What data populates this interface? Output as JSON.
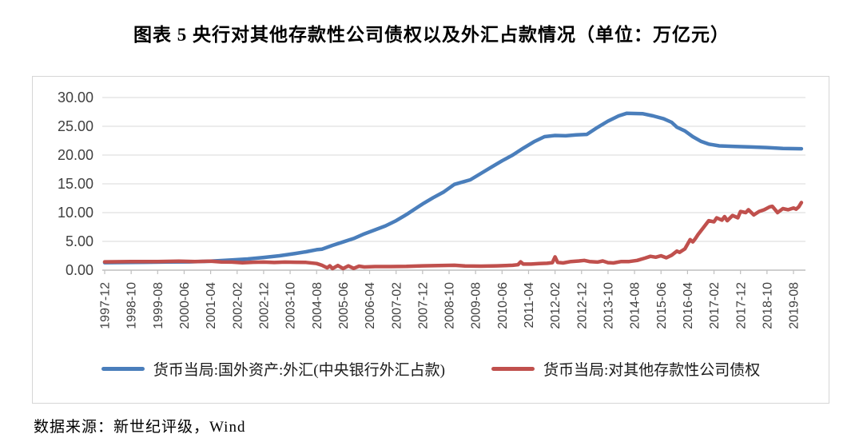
{
  "title": "图表 5  央行对其他存款性公司债权以及外汇占款情况（单位：万亿元）",
  "source_note": "数据来源：新世纪评级，Wind",
  "colors": {
    "series_blue": "#4A7EBB",
    "series_red": "#C0504D",
    "gridline": "#D9D9D9",
    "axis": "#BFBFBF",
    "tick_text": "#404040",
    "box_border": "#D6D6D6"
  },
  "chart_data": {
    "type": "line",
    "title": "央行对其他存款性公司债权以及外汇占款情况",
    "unit": "万亿元",
    "grid": "horizontal",
    "legend_position": "bottom",
    "ylim": [
      0,
      30
    ],
    "y_tick_step": 5,
    "y_tick_labels": [
      "0.00",
      "5.00",
      "10.00",
      "15.00",
      "20.00",
      "25.00",
      "30.00"
    ],
    "x_tick_labels": [
      "1997-12",
      "1998-10",
      "1999-08",
      "2000-06",
      "2001-04",
      "2002-02",
      "2002-12",
      "2003-10",
      "2004-08",
      "2005-06",
      "2006-04",
      "2007-02",
      "2007-12",
      "2008-10",
      "2009-08",
      "2010-06",
      "2011-04",
      "2012-02",
      "2012-12",
      "2013-10",
      "2014-08",
      "2015-06",
      "2016-04",
      "2017-02",
      "2017-12",
      "2018-10",
      "2019-08"
    ],
    "months_per_tick": 10,
    "total_months": 263,
    "series": [
      {
        "name": "货币当局:国外资产:外汇(中央银行外汇占款)",
        "color": "#4A7EBB",
        "points": [
          [
            0,
            1.3
          ],
          [
            8,
            1.33
          ],
          [
            16,
            1.37
          ],
          [
            24,
            1.41
          ],
          [
            32,
            1.45
          ],
          [
            40,
            1.55
          ],
          [
            48,
            1.77
          ],
          [
            54,
            1.95
          ],
          [
            60,
            2.21
          ],
          [
            66,
            2.5
          ],
          [
            72,
            2.9
          ],
          [
            76,
            3.2
          ],
          [
            80,
            3.55
          ],
          [
            82,
            3.65
          ],
          [
            86,
            4.3
          ],
          [
            90,
            4.9
          ],
          [
            94,
            5.5
          ],
          [
            98,
            6.3
          ],
          [
            102,
            7.0
          ],
          [
            106,
            7.7
          ],
          [
            110,
            8.6
          ],
          [
            114,
            9.7
          ],
          [
            118,
            10.9
          ],
          [
            120,
            11.5
          ],
          [
            124,
            12.6
          ],
          [
            128,
            13.6
          ],
          [
            132,
            14.9
          ],
          [
            135,
            15.3
          ],
          [
            138,
            15.7
          ],
          [
            142,
            16.8
          ],
          [
            146,
            17.9
          ],
          [
            150,
            19.0
          ],
          [
            154,
            20.0
          ],
          [
            158,
            21.2
          ],
          [
            162,
            22.3
          ],
          [
            166,
            23.2
          ],
          [
            170,
            23.4
          ],
          [
            174,
            23.35
          ],
          [
            178,
            23.5
          ],
          [
            182,
            23.6
          ],
          [
            186,
            24.8
          ],
          [
            190,
            25.9
          ],
          [
            194,
            26.8
          ],
          [
            197,
            27.25
          ],
          [
            203,
            27.2
          ],
          [
            207,
            26.8
          ],
          [
            211,
            26.3
          ],
          [
            214,
            25.7
          ],
          [
            216,
            24.85
          ],
          [
            219,
            24.2
          ],
          [
            222,
            23.2
          ],
          [
            225,
            22.4
          ],
          [
            228,
            21.9
          ],
          [
            232,
            21.6
          ],
          [
            238,
            21.5
          ],
          [
            244,
            21.4
          ],
          [
            250,
            21.3
          ],
          [
            256,
            21.15
          ],
          [
            263,
            21.1
          ]
        ]
      },
      {
        "name": "货币当局:对其他存款性公司债权",
        "color": "#C0504D",
        "points": [
          [
            0,
            1.44
          ],
          [
            10,
            1.48
          ],
          [
            20,
            1.5
          ],
          [
            28,
            1.55
          ],
          [
            34,
            1.48
          ],
          [
            40,
            1.55
          ],
          [
            44,
            1.42
          ],
          [
            48,
            1.4
          ],
          [
            52,
            1.28
          ],
          [
            56,
            1.38
          ],
          [
            60,
            1.4
          ],
          [
            64,
            1.33
          ],
          [
            68,
            1.4
          ],
          [
            72,
            1.37
          ],
          [
            76,
            1.35
          ],
          [
            80,
            1.15
          ],
          [
            82,
            0.85
          ],
          [
            84,
            0.4
          ],
          [
            85,
            0.75
          ],
          [
            86,
            0.28
          ],
          [
            88,
            0.8
          ],
          [
            90,
            0.28
          ],
          [
            92,
            0.75
          ],
          [
            94,
            0.3
          ],
          [
            96,
            0.7
          ],
          [
            98,
            0.55
          ],
          [
            102,
            0.63
          ],
          [
            108,
            0.62
          ],
          [
            114,
            0.65
          ],
          [
            120,
            0.75
          ],
          [
            126,
            0.8
          ],
          [
            132,
            0.85
          ],
          [
            136,
            0.72
          ],
          [
            142,
            0.7
          ],
          [
            148,
            0.75
          ],
          [
            154,
            0.85
          ],
          [
            156,
            0.95
          ],
          [
            157,
            1.45
          ],
          [
            158,
            1.05
          ],
          [
            161,
            1.05
          ],
          [
            164,
            1.15
          ],
          [
            167,
            1.2
          ],
          [
            169,
            1.3
          ],
          [
            170,
            2.3
          ],
          [
            171,
            1.35
          ],
          [
            173,
            1.25
          ],
          [
            176,
            1.5
          ],
          [
            179,
            1.6
          ],
          [
            181,
            1.7
          ],
          [
            183,
            1.5
          ],
          [
            186,
            1.4
          ],
          [
            188,
            1.6
          ],
          [
            190,
            1.3
          ],
          [
            192,
            1.25
          ],
          [
            195,
            1.5
          ],
          [
            198,
            1.5
          ],
          [
            201,
            1.7
          ],
          [
            204,
            2.1
          ],
          [
            206,
            2.4
          ],
          [
            208,
            2.25
          ],
          [
            210,
            2.5
          ],
          [
            212,
            2.15
          ],
          [
            214,
            2.6
          ],
          [
            216,
            3.3
          ],
          [
            217,
            3.1
          ],
          [
            218,
            3.4
          ],
          [
            219,
            3.7
          ],
          [
            221,
            5.3
          ],
          [
            222,
            4.9
          ],
          [
            223,
            5.5
          ],
          [
            224,
            6.2
          ],
          [
            226,
            7.4
          ],
          [
            228,
            8.6
          ],
          [
            230,
            8.4
          ],
          [
            231,
            9.1
          ],
          [
            233,
            8.7
          ],
          [
            234,
            9.3
          ],
          [
            235,
            8.6
          ],
          [
            237,
            9.5
          ],
          [
            239,
            9.1
          ],
          [
            240,
            10.2
          ],
          [
            242,
            10.0
          ],
          [
            243,
            10.5
          ],
          [
            245,
            9.6
          ],
          [
            247,
            10.2
          ],
          [
            249,
            10.5
          ],
          [
            251,
            11.0
          ],
          [
            252,
            11.1
          ],
          [
            254,
            10.0
          ],
          [
            256,
            10.7
          ],
          [
            258,
            10.5
          ],
          [
            260,
            10.8
          ],
          [
            261,
            10.6
          ],
          [
            262,
            11.0
          ],
          [
            263,
            11.75
          ]
        ]
      }
    ]
  }
}
